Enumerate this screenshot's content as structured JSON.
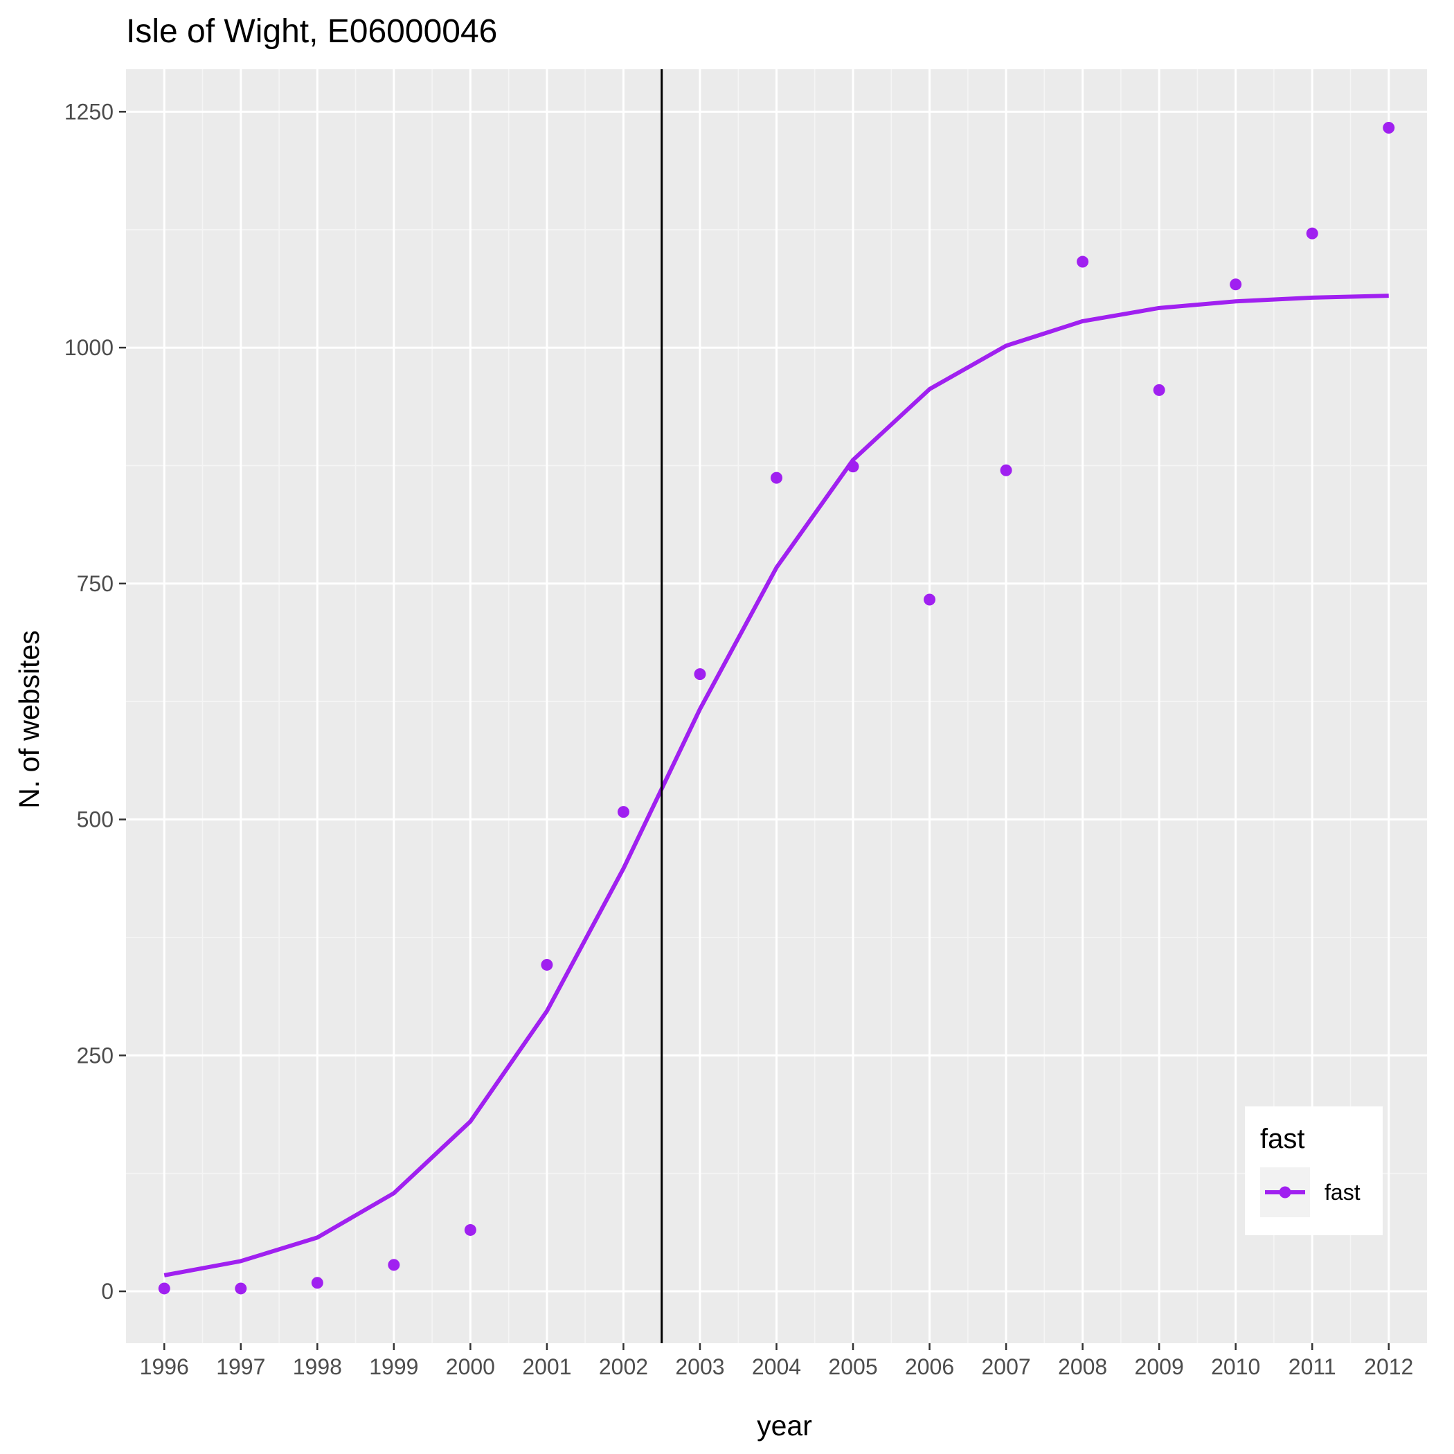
{
  "chart_data": {
    "type": "scatter",
    "title": "Isle of Wight, E06000046",
    "xlabel": "year",
    "ylabel": "N. of websites",
    "x_ticks": [
      "1996",
      "1997",
      "1998",
      "1999",
      "2000",
      "2001",
      "2002",
      "2003",
      "2004",
      "2005",
      "2006",
      "2007",
      "2008",
      "2009",
      "2010",
      "2011",
      "2012"
    ],
    "y_ticks": [
      "0",
      "250",
      "500",
      "750",
      "1000",
      "1250"
    ],
    "xlim": [
      1995.5,
      2012.5
    ],
    "ylim": [
      -55,
      1295
    ],
    "grid": true,
    "legend": {
      "title": "fast",
      "placement": "bottom-right",
      "entries": [
        "fast"
      ]
    },
    "vline": {
      "x": 2002.5,
      "color": "#000000"
    },
    "series": [
      {
        "name": "fast",
        "color": "#a020f0",
        "points": [
          {
            "x": 1996,
            "y": 3
          },
          {
            "x": 1997,
            "y": 3
          },
          {
            "x": 1998,
            "y": 9
          },
          {
            "x": 1999,
            "y": 28
          },
          {
            "x": 2000,
            "y": 65
          },
          {
            "x": 2001,
            "y": 346
          },
          {
            "x": 2002,
            "y": 508
          },
          {
            "x": 2003,
            "y": 654
          },
          {
            "x": 2004,
            "y": 862
          },
          {
            "x": 2005,
            "y": 874
          },
          {
            "x": 2006,
            "y": 733
          },
          {
            "x": 2007,
            "y": 870
          },
          {
            "x": 2008,
            "y": 1091
          },
          {
            "x": 2009,
            "y": 955
          },
          {
            "x": 2010,
            "y": 1067
          },
          {
            "x": 2011,
            "y": 1121
          },
          {
            "x": 2012,
            "y": 1233
          }
        ],
        "fit": [
          {
            "x": 1996,
            "y": 17
          },
          {
            "x": 1997,
            "y": 32
          },
          {
            "x": 1998,
            "y": 57
          },
          {
            "x": 1999,
            "y": 104
          },
          {
            "x": 2000,
            "y": 180
          },
          {
            "x": 2001,
            "y": 297
          },
          {
            "x": 2002,
            "y": 448
          },
          {
            "x": 2003,
            "y": 617
          },
          {
            "x": 2004,
            "y": 767
          },
          {
            "x": 2005,
            "y": 881
          },
          {
            "x": 2006,
            "y": 956
          },
          {
            "x": 2007,
            "y": 1002
          },
          {
            "x": 2008,
            "y": 1028
          },
          {
            "x": 2009,
            "y": 1042
          },
          {
            "x": 2010,
            "y": 1049
          },
          {
            "x": 2011,
            "y": 1053
          },
          {
            "x": 2012,
            "y": 1055
          }
        ]
      }
    ]
  },
  "colors": {
    "panel_background": "#ebebeb",
    "grid_major": "#ffffff",
    "grid_minor": "#f5f5f5",
    "series": "#a020f0",
    "vline": "#000000",
    "tick_mark": "#333333",
    "tick_text": "#4d4d4d"
  }
}
